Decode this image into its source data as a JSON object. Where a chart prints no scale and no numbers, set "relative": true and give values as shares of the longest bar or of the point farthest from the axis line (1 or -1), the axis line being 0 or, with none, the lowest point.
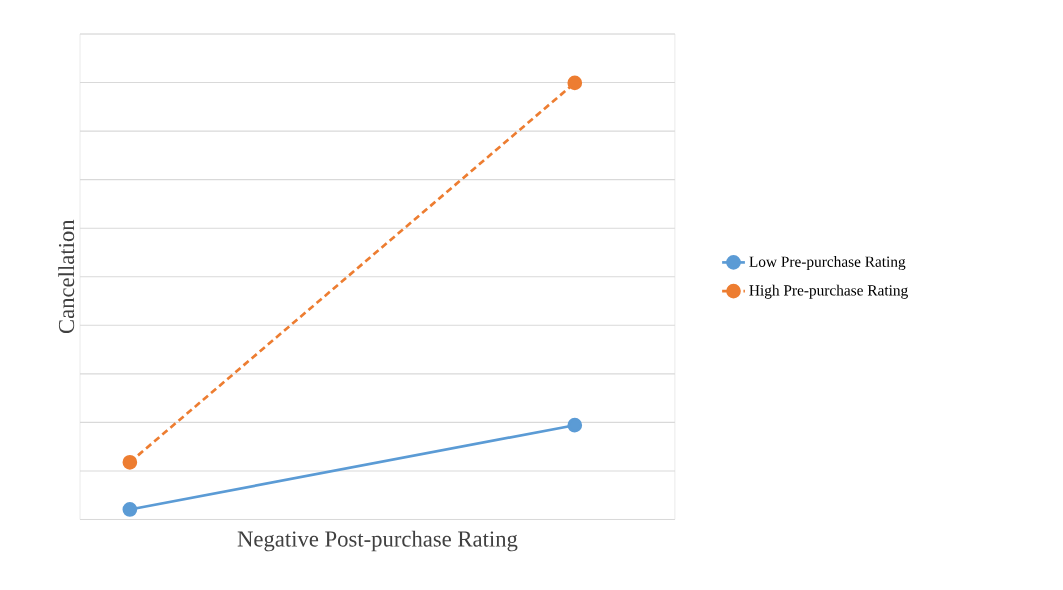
{
  "chart_data": {
    "type": "line",
    "xlabel": "Negative Post-purchase Rating",
    "ylabel": "Cancellation",
    "categories": [
      null,
      null
    ],
    "relative": true,
    "grid": "y",
    "legend": "right",
    "marker": "circle",
    "series": [
      {
        "name": "Low Pre-purchase Rating",
        "color": "#5b9bd5",
        "line_style": "solid",
        "values": [
          0.023,
          0.216
        ]
      },
      {
        "name": "High Pre-purchase Rating",
        "color": "#ed7d31",
        "line_style": "dashed",
        "values": [
          0.131,
          1
        ]
      }
    ]
  }
}
